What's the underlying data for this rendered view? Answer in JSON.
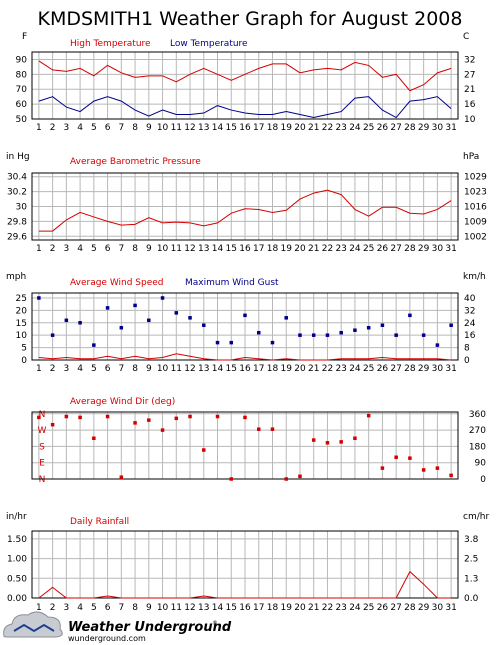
{
  "page": {
    "title": "KMDSMITH1 Weather Graph for August 2008",
    "logo_name": "Weather Underground",
    "logo_url": "wunderground.com"
  },
  "colors": {
    "red": "#d60000",
    "blue": "#00008b",
    "grid": "#b8b8b8",
    "text": "#000000"
  },
  "chart_data": [
    {
      "type": "line",
      "title": "",
      "left_unit": "F",
      "right_unit": "C",
      "x": [
        1,
        2,
        3,
        4,
        5,
        6,
        7,
        8,
        9,
        10,
        11,
        12,
        13,
        14,
        15,
        16,
        17,
        18,
        19,
        20,
        21,
        22,
        23,
        24,
        25,
        26,
        27,
        28,
        29,
        30,
        31
      ],
      "ylim": [
        50,
        95
      ],
      "yticks": [
        50,
        60,
        70,
        80,
        90
      ],
      "right_ticks": [
        "10",
        "16",
        "21",
        "27",
        "32"
      ],
      "series": [
        {
          "name": "High Temperature",
          "color": "#d60000",
          "values": [
            89,
            83,
            82,
            84,
            79,
            86,
            81,
            78,
            79,
            79,
            75,
            80,
            84,
            80,
            76,
            80,
            84,
            87,
            87,
            81,
            83,
            84,
            83,
            88,
            86,
            78,
            80,
            69,
            73,
            81,
            84
          ]
        },
        {
          "name": "Low Temperature",
          "color": "#00008b",
          "values": [
            62,
            65,
            58,
            55,
            62,
            65,
            62,
            56,
            52,
            56,
            53,
            53,
            54,
            59,
            56,
            54,
            53,
            53,
            55,
            53,
            51,
            53,
            55,
            64,
            65,
            56,
            51,
            62,
            63,
            65,
            57
          ]
        }
      ]
    },
    {
      "type": "line",
      "title": "Average Barometric Pressure",
      "left_unit": "in Hg",
      "right_unit": "hPa",
      "x": [
        1,
        2,
        3,
        4,
        5,
        6,
        7,
        8,
        9,
        10,
        11,
        12,
        13,
        14,
        15,
        16,
        17,
        18,
        19,
        20,
        21,
        22,
        23,
        24,
        25,
        26,
        27,
        28,
        29,
        30,
        31
      ],
      "ylim": [
        29.55,
        30.45
      ],
      "yticks": [
        29.6,
        29.8,
        30.0,
        30.2,
        30.4
      ],
      "right_ticks": [
        "1002",
        "1009",
        "1016",
        "1023",
        "1029"
      ],
      "series": [
        {
          "name": "Average Barometric Pressure",
          "color": "#d60000",
          "values": [
            29.67,
            29.67,
            29.82,
            29.92,
            29.86,
            29.8,
            29.75,
            29.76,
            29.85,
            29.78,
            29.79,
            29.78,
            29.74,
            29.78,
            29.91,
            29.97,
            29.96,
            29.92,
            29.95,
            30.1,
            30.18,
            30.22,
            30.16,
            29.96,
            29.87,
            29.99,
            29.99,
            29.91,
            29.9,
            29.96,
            30.08
          ]
        }
      ]
    },
    {
      "type": "line",
      "title": "",
      "left_unit": "mph",
      "right_unit": "km/h",
      "x": [
        1,
        2,
        3,
        4,
        5,
        6,
        7,
        8,
        9,
        10,
        11,
        12,
        13,
        14,
        15,
        16,
        17,
        18,
        19,
        20,
        21,
        22,
        23,
        24,
        25,
        26,
        27,
        28,
        29,
        30,
        31
      ],
      "ylim": [
        0,
        27
      ],
      "yticks": [
        0,
        5,
        10,
        15,
        20,
        25
      ],
      "right_ticks": [
        "0",
        "8",
        "16",
        "24",
        "32",
        "40"
      ],
      "series": [
        {
          "name": "Average Wind Speed",
          "color": "#d60000",
          "values": [
            1,
            0.5,
            1,
            0.5,
            0.5,
            1.5,
            0.5,
            1.5,
            0.5,
            1,
            2.5,
            1.5,
            0.5,
            0,
            0,
            1,
            0.5,
            0,
            0.5,
            0,
            0,
            0,
            0.5,
            0.5,
            0.5,
            1,
            0.5,
            0.5,
            0.5,
            0.5,
            0
          ]
        },
        {
          "name": "Maximum Wind Gust",
          "color": "#00008b",
          "style": "markers",
          "values": [
            25,
            10,
            16,
            15,
            6,
            21,
            13,
            22,
            16,
            25,
            19,
            17,
            14,
            7,
            7,
            18,
            11,
            7,
            17,
            10,
            10,
            10,
            11,
            12,
            13,
            14,
            10,
            18,
            10,
            6,
            14
          ]
        }
      ]
    },
    {
      "type": "scatter",
      "title": "Average Wind Dir (deg)",
      "left_unit": "",
      "right_unit": "",
      "x": [
        1,
        2,
        3,
        4,
        5,
        6,
        7,
        8,
        9,
        10,
        11,
        12,
        13,
        14,
        15,
        16,
        17,
        18,
        19,
        20,
        21,
        22,
        23,
        24,
        25,
        26,
        27,
        28,
        29,
        30,
        31
      ],
      "ylim": [
        0,
        370
      ],
      "compass_ticks": [
        "N",
        "W",
        "S",
        "E",
        "N"
      ],
      "right_ticks": [
        "0",
        "90",
        "180",
        "270",
        "360"
      ],
      "series": [
        {
          "name": "Average Wind Dir (deg)",
          "color": "#d60000",
          "values": [
            340,
            300,
            345,
            340,
            225,
            345,
            10,
            310,
            325,
            270,
            335,
            345,
            160,
            345,
            0,
            340,
            275,
            275,
            0,
            15,
            215,
            200,
            205,
            225,
            350,
            60,
            120,
            115,
            50,
            60,
            20
          ]
        }
      ]
    },
    {
      "type": "line",
      "title": "Daily Rainfall",
      "left_unit": "in/hr",
      "right_unit": "cm/hr",
      "x": [
        1,
        2,
        3,
        4,
        5,
        6,
        7,
        8,
        9,
        10,
        11,
        12,
        13,
        14,
        15,
        16,
        17,
        18,
        19,
        20,
        21,
        22,
        23,
        24,
        25,
        26,
        27,
        28,
        29,
        30,
        31
      ],
      "ylim": [
        0,
        1.7
      ],
      "yticks": [
        0,
        0.5,
        1.0,
        1.5
      ],
      "ytick_labels": [
        "0.00",
        "0.50",
        "1.00",
        "1.50"
      ],
      "right_ticks": [
        "0.0",
        "1.3",
        "2.5",
        "3.8"
      ],
      "series": [
        {
          "name": "Daily Rainfall",
          "color": "#d60000",
          "values": [
            0,
            0.27,
            0,
            0,
            0,
            0.05,
            0,
            0,
            0,
            0,
            0,
            0,
            0.05,
            0,
            0,
            0,
            0,
            0,
            0,
            0,
            0,
            0,
            0,
            0,
            0,
            0,
            0,
            0.67,
            0.35,
            0,
            0
          ]
        }
      ]
    }
  ]
}
